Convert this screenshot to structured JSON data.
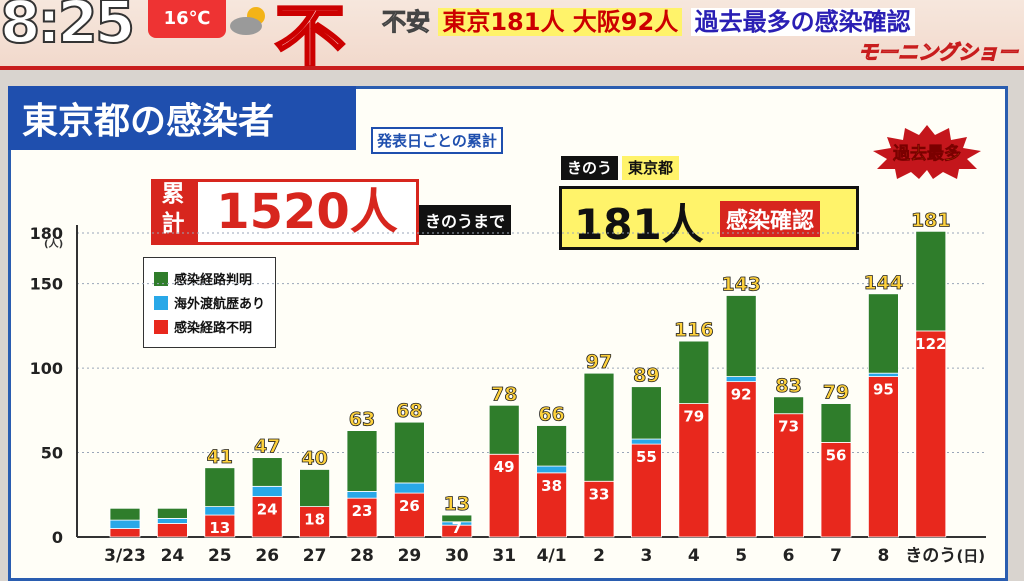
{
  "ticker": {
    "clock": "8:25",
    "temperature": "16℃",
    "topic_char": "不",
    "headline_a": "不安",
    "headline_b": "東京181人 大阪92人",
    "headline_c": "過去最多の感染確認",
    "program": "モーニングショー"
  },
  "panel": {
    "title": "東京都の感染者",
    "subtitle": "発表日ごとの累計",
    "cumulative_label": "累計",
    "cumulative_value": "1520人",
    "cumulative_note": "きのうまで",
    "yesterday_tag": "きのう",
    "yesterday_place": "東京都",
    "yesterday_value": "181人",
    "yesterday_label": "感染確認",
    "record_badge": "過去最多"
  },
  "colors": {
    "green": "#2f7d2b",
    "blue": "#29a8e8",
    "red": "#e8281d",
    "total_label": "#ffd23c",
    "brand_blue": "#1f4fae"
  },
  "chart_data": {
    "type": "bar",
    "stacked": true,
    "ylabel": "(人)",
    "ylim": [
      0,
      190
    ],
    "yticks": [
      0,
      50,
      100,
      150,
      180
    ],
    "categories": [
      "3/23",
      "24",
      "25",
      "26",
      "27",
      "28",
      "29",
      "30",
      "31",
      "4/1",
      "2",
      "3",
      "4",
      "5",
      "6",
      "7",
      "8",
      "きのう"
    ],
    "x_unit": "(日)",
    "series": [
      {
        "name": "感染経路不明",
        "color": "#e8281d",
        "values": [
          5,
          8,
          13,
          24,
          18,
          23,
          26,
          7,
          49,
          38,
          33,
          55,
          79,
          92,
          73,
          56,
          95,
          122
        ]
      },
      {
        "name": "海外渡航歴あり",
        "color": "#29a8e8",
        "values": [
          5,
          3,
          5,
          6,
          0,
          4,
          6,
          2,
          0,
          4,
          0,
          3,
          0,
          3,
          0,
          0,
          2,
          0
        ]
      },
      {
        "name": "感染経路判明",
        "color": "#2f7d2b",
        "values": [
          7,
          6,
          23,
          17,
          22,
          36,
          36,
          4,
          29,
          24,
          64,
          31,
          37,
          48,
          10,
          23,
          47,
          59
        ]
      }
    ],
    "totals": [
      null,
      null,
      41,
      47,
      40,
      63,
      68,
      13,
      78,
      66,
      97,
      89,
      116,
      143,
      83,
      79,
      144,
      181
    ],
    "red_labels": [
      null,
      null,
      13,
      24,
      18,
      23,
      26,
      7,
      49,
      38,
      33,
      55,
      79,
      92,
      73,
      56,
      95,
      122
    ],
    "legend": [
      {
        "label": "感染経路判明",
        "color": "#2f7d2b"
      },
      {
        "label": "海外渡航歴あり",
        "color": "#29a8e8"
      },
      {
        "label": "感染経路不明",
        "color": "#e8281d"
      }
    ]
  }
}
